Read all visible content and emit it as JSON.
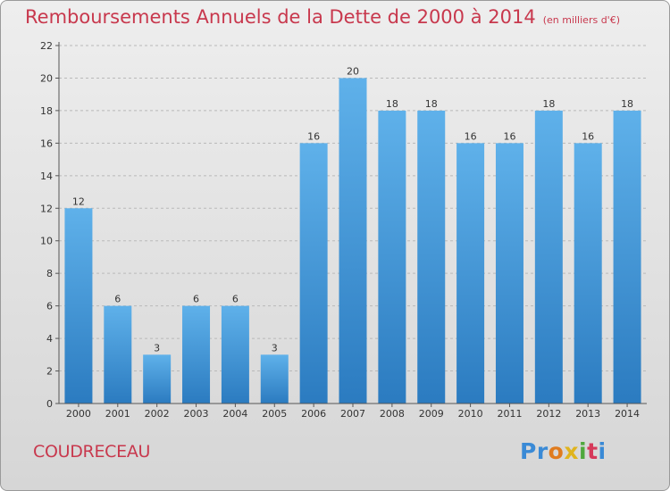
{
  "commune": "COUDRECEAU",
  "logo": {
    "letters": [
      {
        "ch": "P",
        "color": "#3a8ad6"
      },
      {
        "ch": "r",
        "color": "#3a8ad6"
      },
      {
        "ch": "o",
        "color": "#e07b1e"
      },
      {
        "ch": "x",
        "color": "#e0b41e"
      },
      {
        "ch": "i",
        "color": "#4fa83d"
      },
      {
        "ch": "t",
        "color": "#d63a5a"
      },
      {
        "ch": "i",
        "color": "#3a8ad6"
      }
    ]
  },
  "colors": {
    "title": "#c8384d",
    "bar_light": "#5fb1ea",
    "bar_dark": "#2b7bc0"
  },
  "chart_data": {
    "type": "bar",
    "title": "Remboursements Annuels de la Dette de 2000 à 2014",
    "subtitle": "(en milliers d'€)",
    "categories": [
      "2000",
      "2001",
      "2002",
      "2003",
      "2004",
      "2005",
      "2006",
      "2007",
      "2008",
      "2009",
      "2010",
      "2011",
      "2012",
      "2013",
      "2014"
    ],
    "values": [
      12,
      6,
      3,
      6,
      6,
      3,
      16,
      20,
      18,
      18,
      16,
      16,
      18,
      16,
      18
    ],
    "ylim": [
      0,
      22
    ],
    "yticks": [
      0,
      2,
      4,
      6,
      8,
      10,
      12,
      14,
      16,
      18,
      20,
      22
    ],
    "grid": true,
    "data_labels": true
  }
}
